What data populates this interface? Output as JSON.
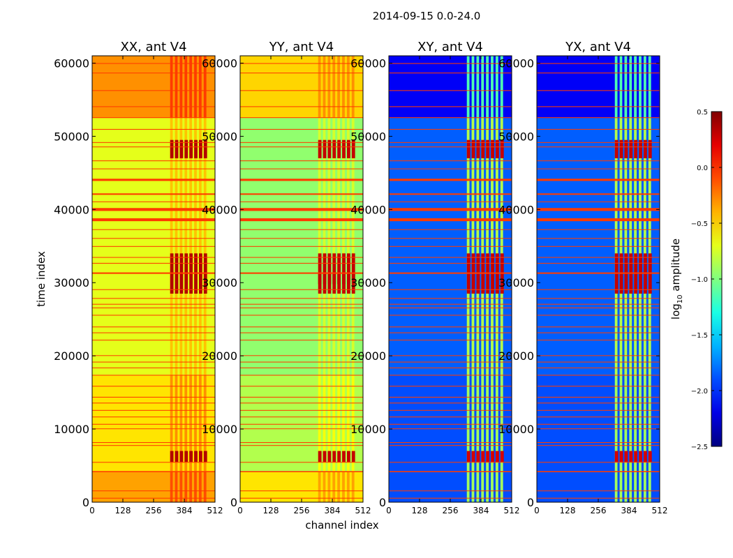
{
  "chart_data": {
    "type": "heatmap",
    "suptitle": "2014-09-15 0.0-24.0",
    "xlabel": "channel index",
    "ylabel": "time index",
    "xlim": [
      0,
      512
    ],
    "ylim": [
      0,
      61000
    ],
    "xticks": [
      0,
      128,
      256,
      384,
      512
    ],
    "yticks": [
      0,
      10000,
      20000,
      30000,
      40000,
      50000,
      60000
    ],
    "colorbar": {
      "label": "log",
      "label_sub": "10",
      "label_suffix": " amplitude",
      "range": [
        -2.5,
        0.5
      ],
      "ticks": [
        0.5,
        0.0,
        -0.5,
        -1.0,
        -1.5,
        -2.0,
        -2.5
      ],
      "tick_labels": [
        "0.5",
        "0.0",
        "−0.5",
        "−1.0",
        "−1.5",
        "−2.0",
        "−2.5"
      ],
      "colormap": "jet"
    },
    "flagged_time_bands": [
      [
        500,
        600
      ],
      [
        1500,
        1600
      ],
      [
        4100,
        4250
      ],
      [
        5400,
        5500
      ],
      [
        7700,
        7800
      ],
      [
        8100,
        8200
      ],
      [
        10000,
        10080
      ],
      [
        10600,
        10700
      ],
      [
        11600,
        11700
      ],
      [
        12500,
        12600
      ],
      [
        13500,
        13600
      ],
      [
        14300,
        14400
      ],
      [
        15800,
        15900
      ],
      [
        17300,
        17400
      ],
      [
        18300,
        18400
      ],
      [
        19100,
        19200
      ],
      [
        20000,
        20080
      ],
      [
        22100,
        22200
      ],
      [
        23100,
        23200
      ],
      [
        23900,
        24000
      ],
      [
        25500,
        25600
      ],
      [
        26500,
        26600
      ],
      [
        27000,
        27100
      ],
      [
        27800,
        27900
      ],
      [
        29000,
        29100
      ],
      [
        31200,
        31400
      ],
      [
        32600,
        32700
      ],
      [
        33400,
        33500
      ],
      [
        34900,
        35000
      ],
      [
        36000,
        36100
      ],
      [
        37200,
        37300
      ],
      [
        38400,
        38800
      ],
      [
        39800,
        40200
      ],
      [
        41000,
        41100
      ],
      [
        42000,
        42200
      ],
      [
        43900,
        44200
      ],
      [
        45500,
        45600
      ],
      [
        46600,
        46700
      ],
      [
        48500,
        48600
      ],
      [
        49100,
        49200
      ],
      [
        50900,
        51000
      ],
      [
        52500,
        52600
      ],
      [
        54000,
        54100
      ],
      [
        56200,
        56300
      ],
      [
        58600,
        58700
      ],
      [
        59900,
        60000
      ]
    ],
    "panels": [
      {
        "title": "XX, ant V4",
        "base": -0.6,
        "active_channels": [
          325,
          485
        ],
        "active_boost": 0.25,
        "time_segments": [
          {
            "t0": 0,
            "t1": 4200,
            "value": -0.35
          },
          {
            "t0": 4200,
            "t1": 17300,
            "value": -0.55
          },
          {
            "t0": 17300,
            "t1": 17400,
            "value": -0.45
          },
          {
            "t0": 17400,
            "t1": 52500,
            "value": -0.7
          },
          {
            "t0": 52500,
            "t1": 61000,
            "value": -0.3
          }
        ],
        "bursts": [
          {
            "t0": 5500,
            "t1": 7000,
            "value": 0.35
          },
          {
            "t0": 28500,
            "t1": 34000,
            "value": 0.35
          },
          {
            "t0": 47000,
            "t1": 49500,
            "value": 0.35
          }
        ]
      },
      {
        "title": "YY, ant V4",
        "base": -0.7,
        "active_channels": [
          325,
          485
        ],
        "active_boost": 0.2,
        "time_segments": [
          {
            "t0": 0,
            "t1": 4200,
            "value": -0.55
          },
          {
            "t0": 4200,
            "t1": 17300,
            "value": -0.85
          },
          {
            "t0": 17300,
            "t1": 52500,
            "value": -0.95
          },
          {
            "t0": 52500,
            "t1": 61000,
            "value": -0.5
          }
        ],
        "bursts": [
          {
            "t0": 5500,
            "t1": 7000,
            "value": 0.3
          },
          {
            "t0": 29800,
            "t1": 31200,
            "value": 0.5
          },
          {
            "t0": 28500,
            "t1": 34000,
            "value": 0.3
          },
          {
            "t0": 47000,
            "t1": 49500,
            "value": 0.3
          }
        ]
      },
      {
        "title": "XY, ant V4",
        "base": -1.9,
        "active_channels": [
          325,
          485
        ],
        "active_boost": 1.0,
        "time_segments": [
          {
            "t0": 0,
            "t1": 17300,
            "value": -1.9
          },
          {
            "t0": 17300,
            "t1": 52500,
            "value": -1.85
          },
          {
            "t0": 52500,
            "t1": 61000,
            "value": -2.15
          }
        ],
        "bursts": [
          {
            "t0": 5500,
            "t1": 7000,
            "value": 0.25
          },
          {
            "t0": 28500,
            "t1": 34000,
            "value": 0.3
          },
          {
            "t0": 47000,
            "t1": 49500,
            "value": 0.3
          }
        ]
      },
      {
        "title": "YX, ant V4",
        "base": -1.9,
        "active_channels": [
          325,
          485
        ],
        "active_boost": 1.0,
        "time_segments": [
          {
            "t0": 0,
            "t1": 17300,
            "value": -1.9
          },
          {
            "t0": 17300,
            "t1": 52500,
            "value": -1.85
          },
          {
            "t0": 52500,
            "t1": 61000,
            "value": -2.15
          }
        ],
        "bursts": [
          {
            "t0": 5500,
            "t1": 7000,
            "value": 0.25
          },
          {
            "t0": 28500,
            "t1": 34000,
            "value": 0.3
          },
          {
            "t0": 47000,
            "t1": 49500,
            "value": 0.3
          }
        ]
      }
    ]
  }
}
